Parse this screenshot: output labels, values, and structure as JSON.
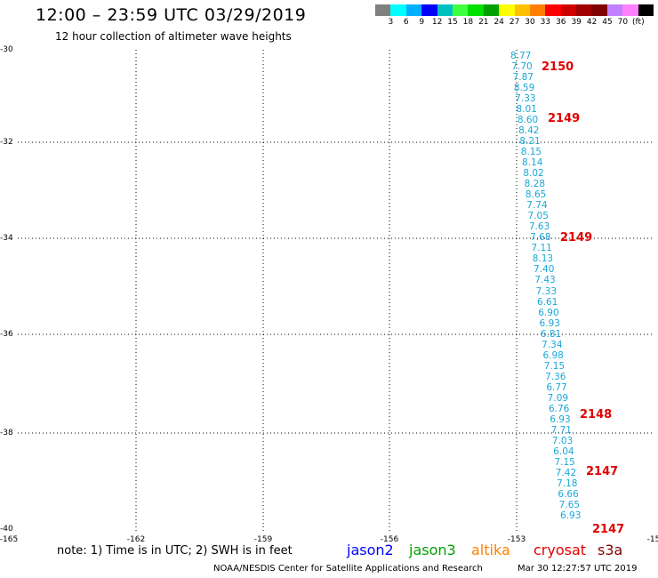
{
  "header": {
    "title": "12:00 – 23:59 UTC 03/29/2019",
    "subtitle": "12 hour collection of altimeter wave heights"
  },
  "legend": {
    "colors": [
      "#808080",
      "#00ffff",
      "#00b0ff",
      "#0000ff",
      "#00c0c0",
      "#40ff40",
      "#00e000",
      "#00a000",
      "#ffff00",
      "#ffc000",
      "#ff8000",
      "#ff0000",
      "#d00000",
      "#a00000",
      "#800000",
      "#c080ff",
      "#ff80ff",
      "#000000"
    ],
    "labels": [
      "3",
      "6",
      "9",
      "12",
      "15",
      "18",
      "21",
      "24",
      "27",
      "30",
      "33",
      "36",
      "39",
      "42",
      "45",
      "70",
      "(ft)"
    ]
  },
  "map": {
    "y_ticks": [
      "-30",
      "-32",
      "-34",
      "-36",
      "-38",
      "-40"
    ],
    "x_ticks": [
      "-165",
      "-162",
      "-159",
      "-156",
      "-153",
      "-15"
    ],
    "grid": true
  },
  "observations": [
    "8.77",
    "7.70",
    "7.87",
    "8.59",
    "7.33",
    "8.01",
    "8.60",
    "8.42",
    "8.21",
    "8.15",
    "8.14",
    "8.02",
    "8.28",
    "8.65",
    "7.74",
    "7.05",
    "7.63",
    "7.68",
    "7.11",
    "8.13",
    "7.40",
    "7.43",
    "7.33",
    "6.61",
    "6.90",
    "6.93",
    "6.81",
    "7.34",
    "6.98",
    "7.15",
    "7.36",
    "6.77",
    "7.09",
    "6.76",
    "6.93",
    "7.71",
    "7.03",
    "6.04",
    "7.15",
    "7.42",
    "7.18",
    "6.66",
    "7.65",
    "6.93"
  ],
  "pass_labels": [
    "2150",
    "2149",
    "2149",
    "2148",
    "2147",
    "2147"
  ],
  "footer": {
    "note": "note:  1) Time is in UTC;  2) SWH is in feet",
    "satellites": [
      {
        "name": "jason2",
        "color": "#0000ff"
      },
      {
        "name": "jason3",
        "color": "#00a000"
      },
      {
        "name": "altika",
        "color": "#ff8000"
      },
      {
        "name": "cryosat",
        "color": "#e00000"
      },
      {
        "name": "s3a",
        "color": "#800000"
      }
    ],
    "credit": "NOAA/NESDIS Center for Satellite Applications and Research",
    "timestamp": "Mar 30 12:27:57 UTC 2019"
  }
}
